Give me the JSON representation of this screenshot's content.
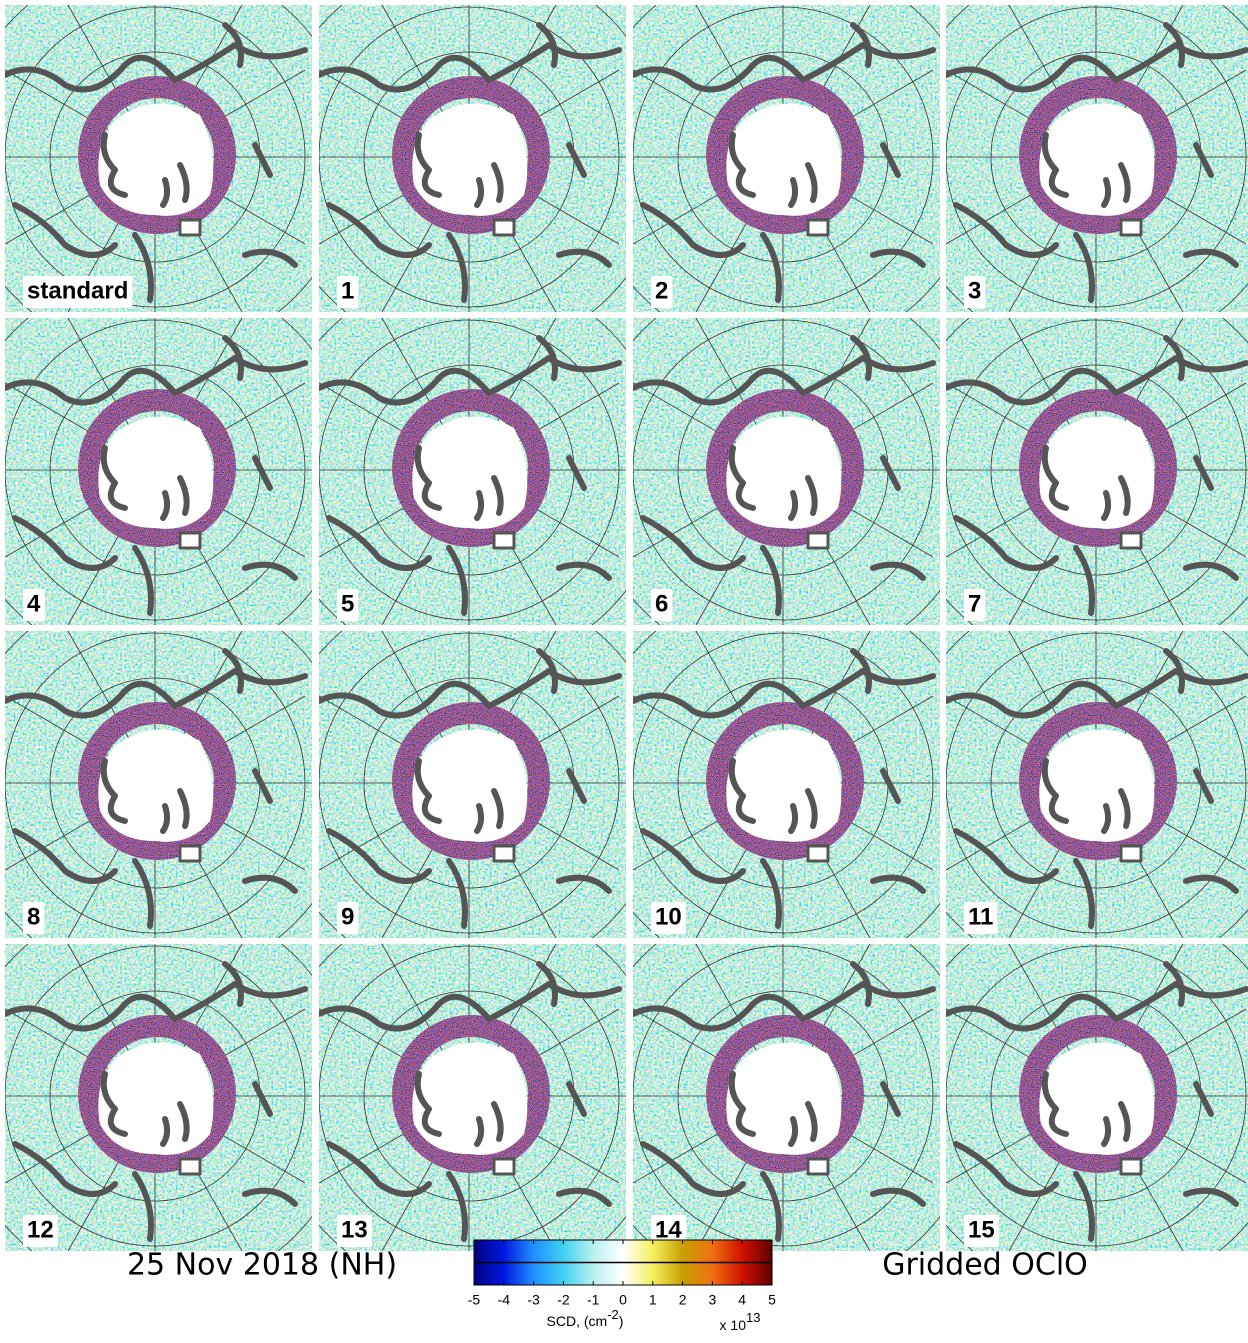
{
  "panels": [
    {
      "label": "standard"
    },
    {
      "label": "1"
    },
    {
      "label": "2"
    },
    {
      "label": "3"
    },
    {
      "label": "4"
    },
    {
      "label": "5"
    },
    {
      "label": "6"
    },
    {
      "label": "7"
    },
    {
      "label": "8"
    },
    {
      "label": "9"
    },
    {
      "label": "10"
    },
    {
      "label": "11"
    },
    {
      "label": "12"
    },
    {
      "label": "13"
    },
    {
      "label": "14"
    },
    {
      "label": "15"
    }
  ],
  "caption_left": "25 Nov 2018 (NH)",
  "caption_right": "Gridded OClO",
  "colorbar": {
    "lim": [
      -5,
      5
    ],
    "ticks": [
      -5,
      -4,
      -3,
      -2,
      -1,
      0,
      1,
      2,
      3,
      4,
      5
    ],
    "colormap": [
      "#000080",
      "#0018e0",
      "#1e90ff",
      "#40d0f0",
      "#b8f0f0",
      "#ffffff",
      "#f4f060",
      "#c8a000",
      "#f07010",
      "#d01000",
      "#600000"
    ],
    "label": "SCD, (cm",
    "label_sup": "-2",
    "label_end": ")",
    "multiplier": "x 10",
    "multiplier_sup": "13"
  }
}
